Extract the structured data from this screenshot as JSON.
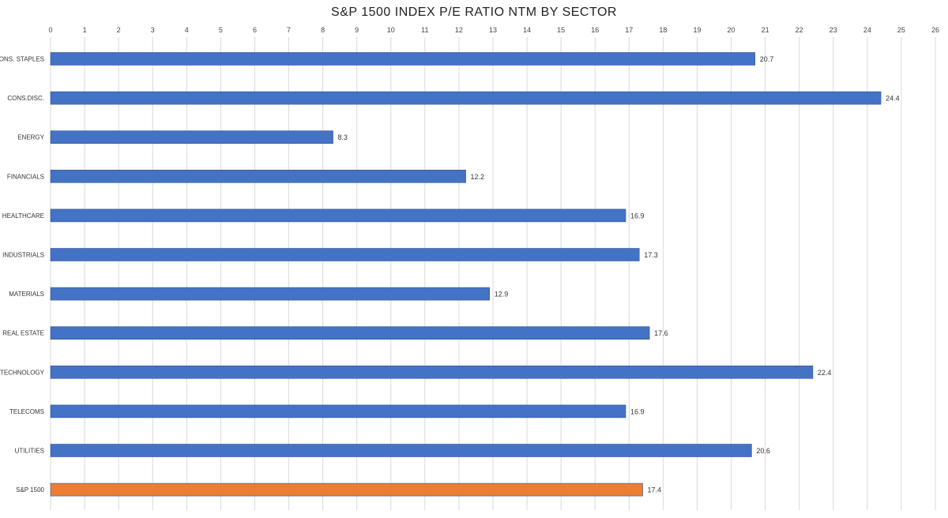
{
  "chart_data": {
    "type": "bar",
    "orientation": "horizontal",
    "title": "S&P 1500 INDEX P/E RATIO NTM BY SECTOR",
    "xlabel": "",
    "ylabel": "",
    "xlim": [
      0,
      26
    ],
    "x_ticks": [
      0,
      1,
      2,
      3,
      4,
      5,
      6,
      7,
      8,
      9,
      10,
      11,
      12,
      13,
      14,
      15,
      16,
      17,
      18,
      19,
      20,
      21,
      22,
      23,
      24,
      25,
      26
    ],
    "x_axis_position": "top",
    "grid": true,
    "legend": "none",
    "categories": [
      "CONS. STAPLES",
      "CONS.DISC.",
      "ENERGY",
      "FINANCIALS",
      "HEALTHCARE",
      "INDUSTRIALS",
      "MATERIALS",
      "REAL ESTATE",
      "TECHNOLOGY",
      "TELECOMS",
      "UTILITIES",
      "S&P 1500"
    ],
    "values": [
      20.7,
      24.4,
      8.3,
      12.2,
      16.9,
      17.3,
      12.9,
      17.6,
      22.4,
      16.9,
      20.6,
      17.4
    ],
    "data_labels": [
      "20.7",
      "24.4",
      "8.3",
      "12.2",
      "16.9",
      "17.3",
      "12.9",
      "17.6",
      "22.4",
      "16.9",
      "20.6",
      "17.4"
    ],
    "colors": {
      "default_bar": "#4472C4",
      "highlight_bar": "#ED7D31",
      "highlight_category": "S&P 1500",
      "gridline": "#D9D9D9"
    }
  }
}
